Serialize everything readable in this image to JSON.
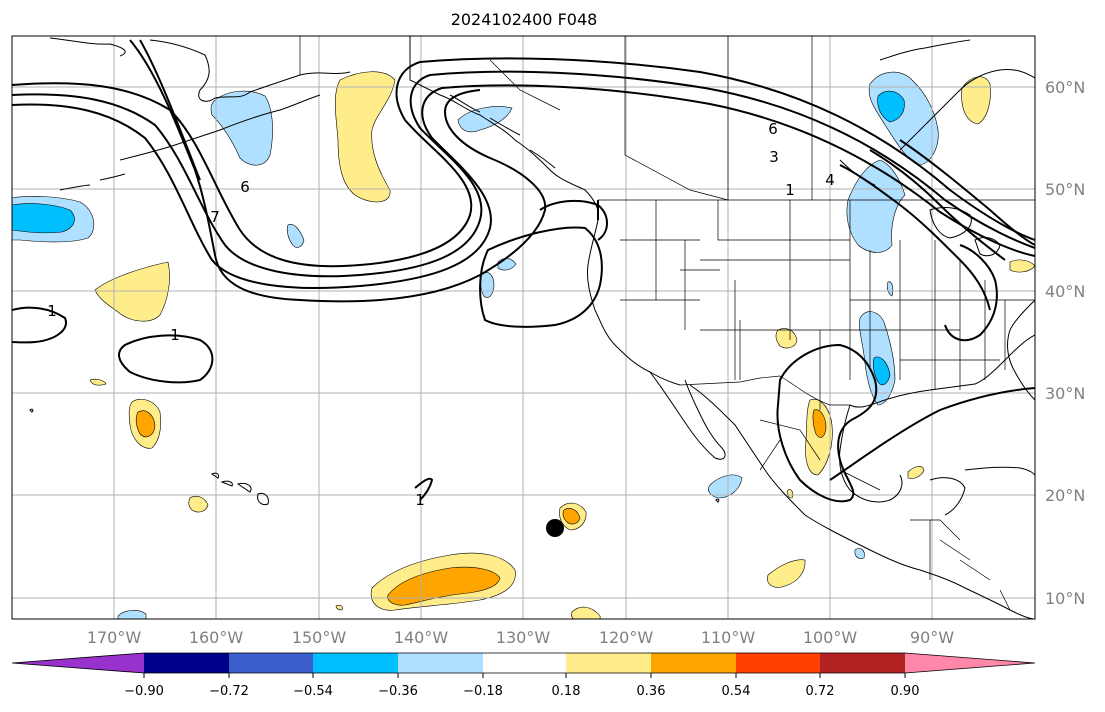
{
  "title": "2024102400 F048",
  "lat_labels": [
    "60°N",
    "50°N",
    "40°N",
    "30°N",
    "20°N",
    "10°N"
  ],
  "lon_labels": [
    "170°W",
    "160°W",
    "150°W",
    "140°W",
    "130°W",
    "120°W",
    "110°W",
    "100°W",
    "90°W"
  ],
  "colorbar": {
    "ticks": [
      "−0.90",
      "−0.72",
      "−0.54",
      "−0.36",
      "−0.18",
      "0.18",
      "0.36",
      "0.54",
      "0.72",
      "0.90"
    ],
    "colors": [
      "#9932cc",
      "#00008b",
      "#3a5fcd",
      "#00bfff",
      "#b0e0ff",
      "#ffffff",
      "#ffec8b",
      "#ffa500",
      "#ff4000",
      "#b22222",
      "#ff88aa"
    ]
  },
  "contour_labels": [
    "6",
    "3",
    "1",
    "4",
    "6",
    "7",
    "1",
    "1",
    "1"
  ],
  "marker": {
    "name": "black-dot"
  }
}
